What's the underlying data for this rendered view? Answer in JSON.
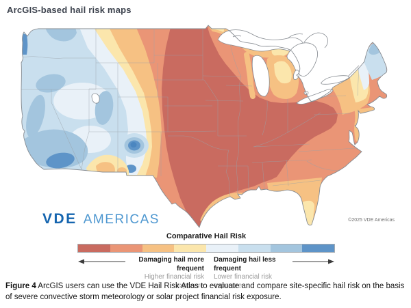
{
  "page": {
    "title": "ArcGIS-based hail risk maps"
  },
  "logo": {
    "brand": "VDE",
    "suffix": "AMERICAS"
  },
  "map": {
    "copyright": "©2025 VDE Americas"
  },
  "legend": {
    "title": "Comparative Hail Risk",
    "colors": [
      "#c96b60",
      "#ea9576",
      "#f6c183",
      "#fbe6ac",
      "#e9f1f8",
      "#c9dfee",
      "#a3c5de",
      "#5e94c8"
    ],
    "left": {
      "bold": "Damaging hail more frequent",
      "sub": "Higher financial risk exposure"
    },
    "right": {
      "bold": "Damaging hail less frequent",
      "sub": "Lower financial risk exposure"
    }
  },
  "caption": {
    "label": "Figure 4",
    "text": " ArcGIS users can use the VDE Hail Risk Atlas to evaluate and compare site-specific hail risk on the basis of severe convective storm meteorology or solar project financial risk exposure."
  },
  "palette": {
    "red": "#c96b60",
    "salmon": "#ea9576",
    "orange": "#f6c183",
    "cream": "#fbe6ac",
    "paleblue": "#e9f1f8",
    "lightblue": "#c9dfee",
    "mediumblue": "#a3c5de",
    "strongblue": "#5e94c8",
    "coreblue": "#4b86c0",
    "outline": "#878c92",
    "stateline": "#9aa2a8",
    "lake": "#ffffff"
  }
}
